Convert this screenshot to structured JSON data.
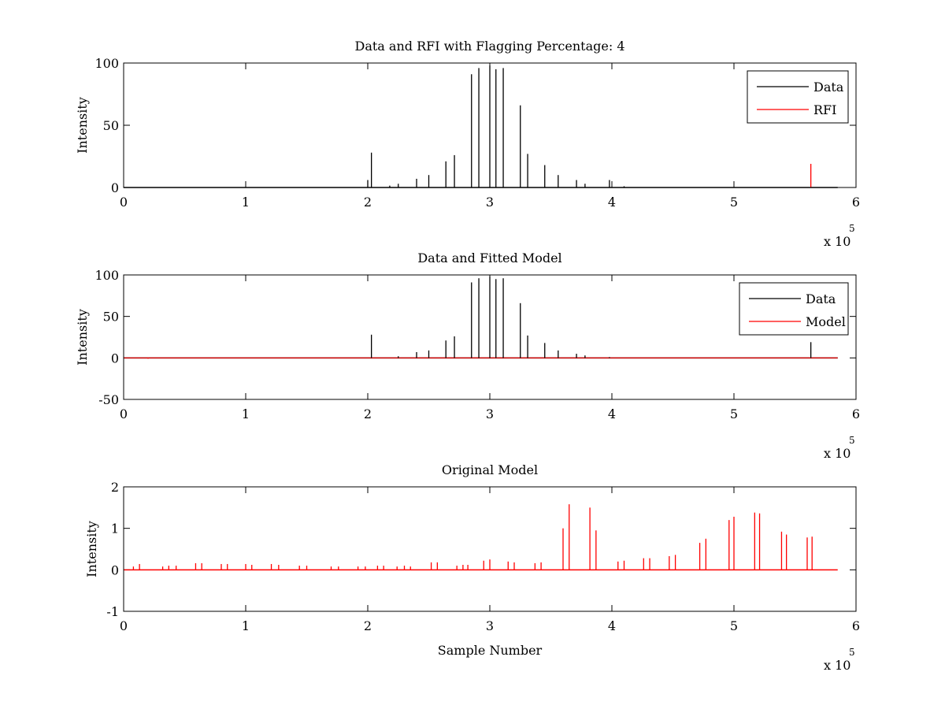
{
  "figure": {
    "colors": {
      "data": "#000000",
      "red": "#ff0000",
      "axes": "#000000",
      "background": "#ffffff"
    }
  },
  "chart_data": [
    {
      "type": "line",
      "title": "Data and RFI with Flagging Percentage: 4",
      "xlabel": "",
      "ylabel": "Intensity",
      "xlim": [
        0,
        6
      ],
      "ylim": [
        0,
        100
      ],
      "x_exponent_label": "x 10",
      "x_exponent_power": "5",
      "xticks": [
        "0",
        "1",
        "2",
        "3",
        "4",
        "5",
        "6"
      ],
      "yticks": [
        0,
        50,
        100
      ],
      "ytick_labels": [
        "0",
        "50",
        "100"
      ],
      "baseline": 0,
      "x_end": 5.85,
      "grid": false,
      "legend_position": "top-right",
      "legend": [
        {
          "name": "Data",
          "color": "#000000"
        },
        {
          "name": "RFI",
          "color": "#ff0000"
        }
      ],
      "series": [
        {
          "name": "Data",
          "color": "#000000",
          "spikes": [
            [
              2.0,
              6
            ],
            [
              2.03,
              28
            ],
            [
              2.18,
              1.5
            ],
            [
              2.25,
              3
            ],
            [
              2.4,
              7
            ],
            [
              2.5,
              10
            ],
            [
              2.64,
              21
            ],
            [
              2.71,
              26
            ],
            [
              2.85,
              91
            ],
            [
              2.91,
              96
            ],
            [
              3.0,
              98
            ],
            [
              3.05,
              95
            ],
            [
              3.11,
              96
            ],
            [
              3.25,
              66
            ],
            [
              3.31,
              27
            ],
            [
              3.45,
              18
            ],
            [
              3.56,
              10
            ],
            [
              3.71,
              6
            ],
            [
              3.78,
              3
            ],
            [
              3.98,
              6
            ],
            [
              4.1,
              1
            ]
          ]
        },
        {
          "name": "RFI",
          "color": "#ff0000",
          "spikes": [
            [
              5.63,
              19
            ]
          ]
        }
      ]
    },
    {
      "type": "line",
      "title": "Data and Fitted Model",
      "xlabel": "",
      "ylabel": "Intensity",
      "xlim": [
        0,
        6
      ],
      "ylim": [
        -50,
        100
      ],
      "x_exponent_label": "x 10",
      "x_exponent_power": "5",
      "xticks": [
        "0",
        "1",
        "2",
        "3",
        "4",
        "5",
        "6"
      ],
      "yticks": [
        -50,
        0,
        50,
        100
      ],
      "ytick_labels": [
        "-50",
        "0",
        "50",
        "100"
      ],
      "baseline": 0,
      "x_end": 5.85,
      "grid": false,
      "legend_position": "top-right",
      "legend": [
        {
          "name": "Data",
          "color": "#000000"
        },
        {
          "name": "Model",
          "color": "#ff0000"
        }
      ],
      "series": [
        {
          "name": "Data",
          "color": "#000000",
          "spikes": [
            [
              2.03,
              28
            ],
            [
              2.25,
              2
            ],
            [
              2.4,
              7
            ],
            [
              2.5,
              9
            ],
            [
              2.64,
              21
            ],
            [
              2.71,
              26
            ],
            [
              2.85,
              91
            ],
            [
              2.91,
              96
            ],
            [
              3.0,
              98
            ],
            [
              3.05,
              95
            ],
            [
              3.11,
              96
            ],
            [
              3.25,
              66
            ],
            [
              3.31,
              27
            ],
            [
              3.45,
              18
            ],
            [
              3.56,
              9
            ],
            [
              3.71,
              5
            ],
            [
              3.78,
              3
            ],
            [
              3.98,
              1
            ],
            [
              5.63,
              19
            ]
          ]
        },
        {
          "name": "Model",
          "color": "#ff0000",
          "spikes": [
            [
              0.2,
              -1
            ]
          ]
        }
      ]
    },
    {
      "type": "line",
      "title": "Original Model",
      "xlabel": "Sample Number",
      "ylabel": "Intensity",
      "xlim": [
        0,
        6
      ],
      "ylim": [
        -1,
        2
      ],
      "x_exponent_label": "x 10",
      "x_exponent_power": "5",
      "xticks": [
        "0",
        "1",
        "2",
        "3",
        "4",
        "5",
        "6"
      ],
      "yticks": [
        -1,
        0,
        1,
        2
      ],
      "ytick_labels": [
        "-1",
        "0",
        "1",
        "2"
      ],
      "baseline": 0,
      "x_end": 5.85,
      "grid": false,
      "legend_position": "none",
      "legend": [],
      "series": [
        {
          "name": "Model",
          "color": "#ff0000",
          "spikes": [
            [
              0.08,
              0.08
            ],
            [
              0.13,
              0.14
            ],
            [
              0.32,
              0.08
            ],
            [
              0.37,
              0.1
            ],
            [
              0.43,
              0.1
            ],
            [
              0.59,
              0.16
            ],
            [
              0.64,
              0.16
            ],
            [
              0.8,
              0.14
            ],
            [
              0.85,
              0.14
            ],
            [
              1.0,
              0.14
            ],
            [
              1.05,
              0.12
            ],
            [
              1.21,
              0.14
            ],
            [
              1.27,
              0.12
            ],
            [
              1.44,
              0.1
            ],
            [
              1.5,
              0.1
            ],
            [
              1.7,
              0.08
            ],
            [
              1.76,
              0.08
            ],
            [
              1.92,
              0.08
            ],
            [
              1.98,
              0.08
            ],
            [
              2.08,
              0.1
            ],
            [
              2.13,
              0.1
            ],
            [
              2.24,
              0.08
            ],
            [
              2.3,
              0.1
            ],
            [
              2.35,
              0.08
            ],
            [
              2.52,
              0.18
            ],
            [
              2.57,
              0.18
            ],
            [
              2.73,
              0.1
            ],
            [
              2.78,
              0.12
            ],
            [
              2.82,
              0.12
            ],
            [
              2.95,
              0.22
            ],
            [
              3.0,
              0.25
            ],
            [
              3.15,
              0.2
            ],
            [
              3.2,
              0.18
            ],
            [
              3.37,
              0.16
            ],
            [
              3.42,
              0.18
            ],
            [
              3.6,
              1.0
            ],
            [
              3.65,
              1.58
            ],
            [
              3.82,
              1.5
            ],
            [
              3.87,
              0.95
            ],
            [
              4.05,
              0.2
            ],
            [
              4.1,
              0.22
            ],
            [
              4.26,
              0.28
            ],
            [
              4.31,
              0.28
            ],
            [
              4.47,
              0.33
            ],
            [
              4.52,
              0.36
            ],
            [
              4.72,
              0.65
            ],
            [
              4.77,
              0.75
            ],
            [
              4.96,
              1.2
            ],
            [
              5.0,
              1.28
            ],
            [
              5.17,
              1.38
            ],
            [
              5.21,
              1.36
            ],
            [
              5.39,
              0.92
            ],
            [
              5.43,
              0.85
            ],
            [
              5.6,
              0.78
            ],
            [
              5.64,
              0.8
            ]
          ]
        }
      ]
    }
  ]
}
